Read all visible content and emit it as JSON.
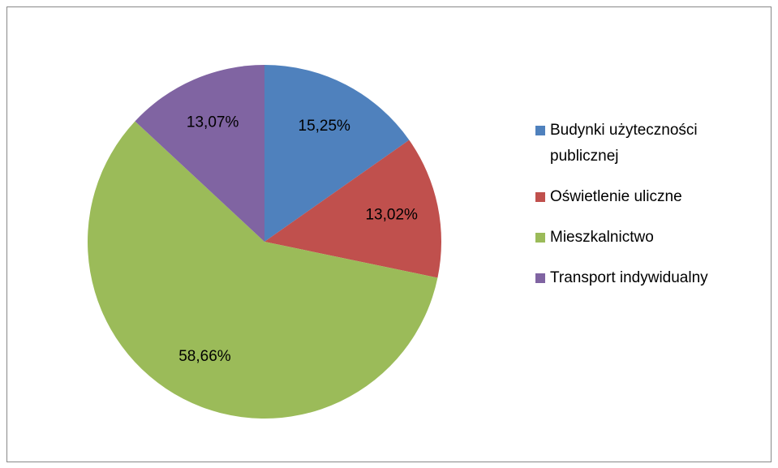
{
  "chart_data": {
    "type": "pie",
    "categories": [
      "Budynki użyteczności publicznej",
      "Oświetlenie uliczne",
      "Mieszkalnictwo",
      "Transport indywidualny"
    ],
    "values": [
      15.25,
      13.02,
      58.66,
      13.07
    ],
    "value_labels": [
      "15,25%",
      "13,02%",
      "58,66%",
      "13,07%"
    ],
    "colors": [
      "#4f81bd",
      "#c0504d",
      "#9bbb59",
      "#8064a2"
    ],
    "legend": "right"
  }
}
